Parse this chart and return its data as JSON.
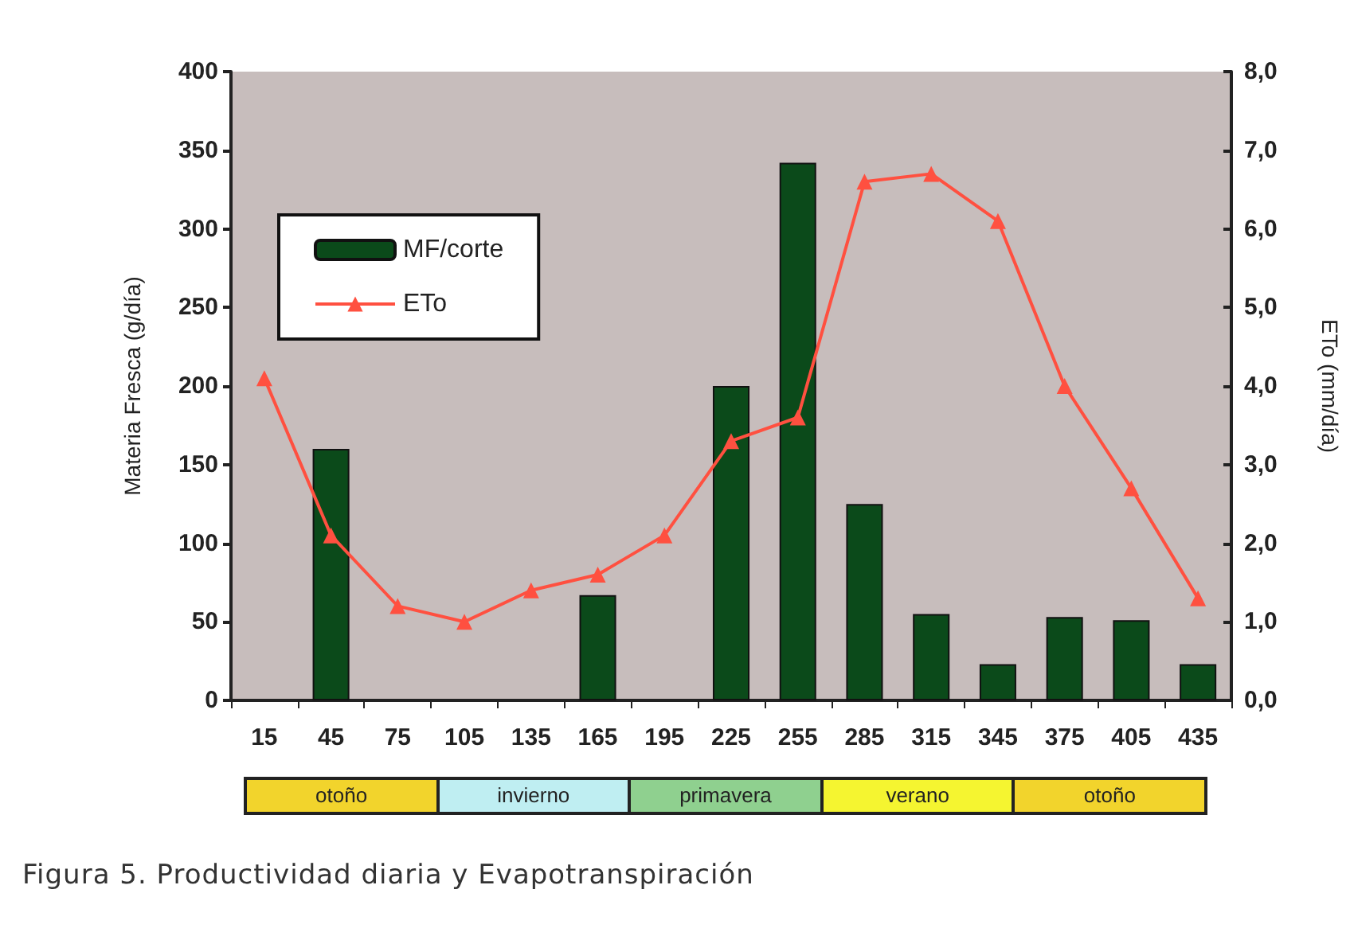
{
  "chart_data": {
    "type": "bar",
    "title": "Figura 5. Productividad diaria y Evapotranspiración",
    "ylabel": "Materia Fresca (g/día)",
    "y2label": "ETo (mm/día)",
    "categories": [
      "15",
      "45",
      "75",
      "105",
      "135",
      "165",
      "195",
      "225",
      "255",
      "285",
      "315",
      "345",
      "375",
      "405",
      "435"
    ],
    "series": [
      {
        "name": "MF/corte",
        "color": "#0b4a1a",
        "values": [
          null,
          160,
          null,
          null,
          null,
          67,
          null,
          200,
          342,
          125,
          55,
          23,
          53,
          51,
          23
        ]
      },
      {
        "name": "ETo",
        "type": "line",
        "axis": "y2",
        "color": "#ff5040",
        "marker": "triangle",
        "values": [
          4.1,
          2.1,
          1.2,
          1.0,
          1.4,
          1.6,
          2.1,
          3.3,
          3.6,
          6.6,
          6.7,
          6.1,
          4.0,
          2.7,
          1.3
        ]
      }
    ],
    "ylim": [
      0,
      400
    ],
    "yticks": [
      0,
      50,
      100,
      150,
      200,
      250,
      300,
      350,
      400
    ],
    "y2lim": [
      0,
      8
    ],
    "y2ticks": [
      {
        "value": 0,
        "label": "0,0"
      },
      {
        "value": 1,
        "label": "1,0"
      },
      {
        "value": 2,
        "label": "2,0"
      },
      {
        "value": 3,
        "label": "3,0"
      },
      {
        "value": 4,
        "label": "4,0"
      },
      {
        "value": 5,
        "label": "5,0"
      },
      {
        "value": 6,
        "label": "6,0"
      },
      {
        "value": 7,
        "label": "7,0"
      },
      {
        "value": 8,
        "label": "8,0"
      }
    ],
    "annotations": [
      "otoño",
      "invierno",
      "primavera",
      "verano",
      "otoño"
    ],
    "legend": "top left",
    "grid": false
  }
}
